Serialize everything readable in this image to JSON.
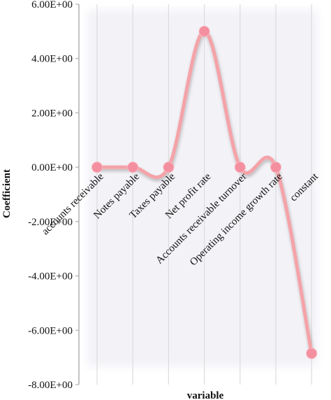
{
  "chart_data": {
    "type": "line",
    "xlabel": "variable",
    "ylabel": "Coefficient",
    "ylim": [
      -8,
      6
    ],
    "yticks": [
      6,
      4,
      2,
      0,
      -2,
      -4,
      -6,
      -8
    ],
    "ytick_labels": [
      "6.00E+00",
      "4.00E+00",
      "2.00E+00",
      "0.00E+00",
      "-2.00E+00",
      "-4.00E+00",
      "-6.00E+00",
      "-8.00E+00"
    ],
    "categories": [
      "accounts receivable",
      "Notes payable",
      "Taxes payable",
      "Net profit rate",
      "Accounts receivable turnover",
      "Operating income growth rate",
      "constant"
    ],
    "values": [
      0.0,
      0.0,
      0.0,
      5.0,
      0.0,
      0.0,
      -6.85
    ],
    "grid": "vertical",
    "line_color": "#f4a3a8",
    "marker_color": "#f48fa0",
    "panel_color": "#f3f2f7"
  }
}
